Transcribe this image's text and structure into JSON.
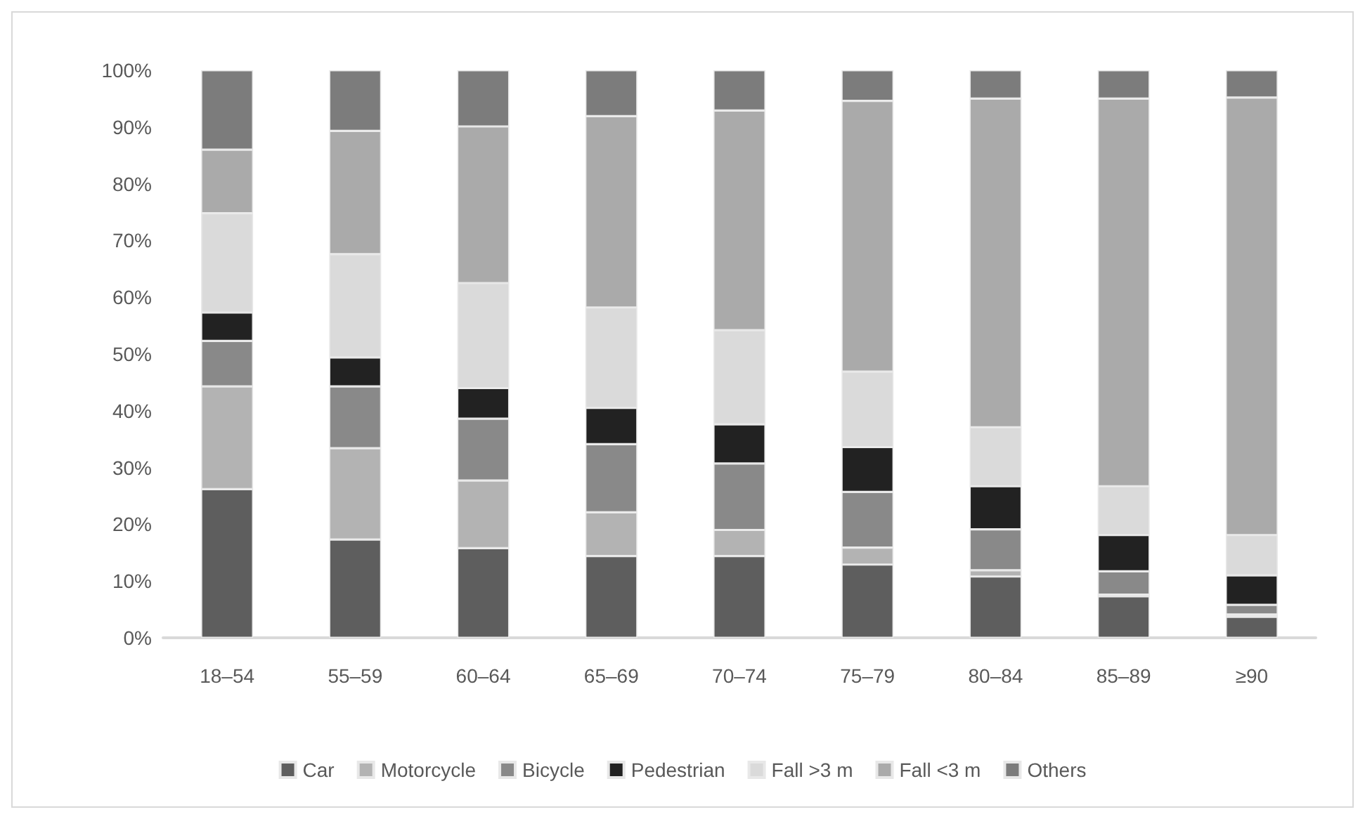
{
  "chart_data": {
    "type": "bar",
    "stacked": true,
    "categories": [
      "18–54",
      "55–59",
      "60–64",
      "65–69",
      "70–74",
      "75–79",
      "80–84",
      "85–89",
      "≥90"
    ],
    "series": [
      {
        "name": "Car",
        "color": "#5e5e5e",
        "values": [
          26.2,
          17.3,
          15.8,
          14.4,
          14.4,
          12.9,
          10.8,
          7.3,
          3.7
        ]
      },
      {
        "name": "Motorcycle",
        "color": "#b3b3b3",
        "values": [
          18.1,
          16.1,
          11.9,
          7.7,
          4.6,
          3.0,
          1.1,
          0.3,
          0.4
        ]
      },
      {
        "name": "Bicycle",
        "color": "#898989",
        "values": [
          8.0,
          10.9,
          10.9,
          12.0,
          11.7,
          9.8,
          7.2,
          4.1,
          1.7
        ]
      },
      {
        "name": "Pedestrian",
        "color": "#222222",
        "values": [
          5.0,
          5.1,
          5.4,
          6.4,
          6.9,
          7.9,
          7.6,
          6.4,
          5.2
        ]
      },
      {
        "name": "Fall >3 m",
        "color": "#dadada",
        "values": [
          17.5,
          18.2,
          18.5,
          17.7,
          16.6,
          13.3,
          10.4,
          8.6,
          7.1
        ]
      },
      {
        "name": "Fall <3 m",
        "color": "#aaaaaa",
        "values": [
          11.2,
          21.7,
          27.6,
          33.7,
          38.7,
          47.7,
          57.9,
          68.3,
          77.1
        ]
      },
      {
        "name": "Others",
        "color": "#7c7c7c",
        "values": [
          14.0,
          10.7,
          9.9,
          8.1,
          7.1,
          5.4,
          5.0,
          5.0,
          4.8
        ]
      }
    ],
    "ylim": [
      0,
      100
    ],
    "yticks": [
      {
        "value": 0,
        "label": "0%"
      },
      {
        "value": 10,
        "label": "10%"
      },
      {
        "value": 20,
        "label": "20%"
      },
      {
        "value": 30,
        "label": "30%"
      },
      {
        "value": 40,
        "label": "40%"
      },
      {
        "value": 50,
        "label": "50%"
      },
      {
        "value": 60,
        "label": "60%"
      },
      {
        "value": 70,
        "label": "70%"
      },
      {
        "value": 80,
        "label": "80%"
      },
      {
        "value": 90,
        "label": "90%"
      },
      {
        "value": 100,
        "label": "100%"
      }
    ],
    "grid": false,
    "legend": "bottom"
  }
}
